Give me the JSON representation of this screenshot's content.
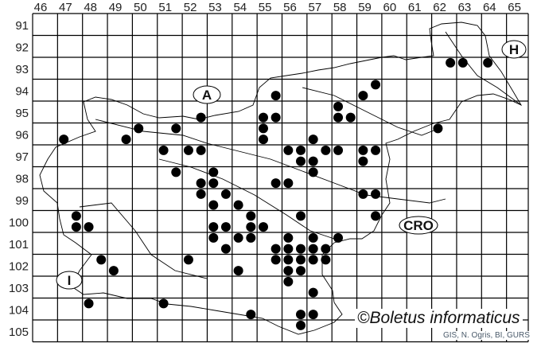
{
  "map": {
    "grid_columns": [
      "46",
      "47",
      "48",
      "49",
      "50",
      "51",
      "52",
      "53",
      "54",
      "55",
      "56",
      "57",
      "58",
      "59",
      "60",
      "61",
      "62",
      "63",
      "64",
      "65"
    ],
    "grid_rows": [
      "91",
      "92",
      "93",
      "94",
      "95",
      "96",
      "97",
      "98",
      "99",
      "100",
      "101",
      "102",
      "103",
      "104",
      "105"
    ],
    "region_labels": {
      "austria": "A",
      "hungary": "H",
      "croatia": "CRO",
      "italy": "I"
    },
    "dot_color": "#000000",
    "records": [
      [
        46.75,
        96.25
      ],
      [
        49.25,
        96.25
      ],
      [
        49.75,
        95.75
      ],
      [
        51.25,
        95.75
      ],
      [
        52.25,
        95.25
      ],
      [
        50.75,
        96.75
      ],
      [
        51.75,
        96.75
      ],
      [
        52.25,
        96.75
      ],
      [
        51.25,
        97.75
      ],
      [
        52.75,
        97.75
      ],
      [
        52.25,
        98.25
      ],
      [
        52.75,
        98.25
      ],
      [
        52.25,
        98.75
      ],
      [
        53.25,
        98.75
      ],
      [
        52.75,
        99.25
      ],
      [
        53.75,
        99.25
      ],
      [
        47.25,
        99.75
      ],
      [
        47.25,
        100.25
      ],
      [
        47.75,
        100.25
      ],
      [
        52.75,
        100.25
      ],
      [
        53.25,
        100.25
      ],
      [
        54.25,
        100.25
      ],
      [
        54.75,
        100.25
      ],
      [
        54.25,
        99.75
      ],
      [
        52.75,
        100.75
      ],
      [
        53.75,
        100.75
      ],
      [
        54.25,
        100.75
      ],
      [
        53.25,
        101.25
      ],
      [
        48.25,
        101.75
      ],
      [
        51.75,
        101.75
      ],
      [
        48.75,
        102.25
      ],
      [
        53.75,
        102.25
      ],
      [
        47.75,
        103.75
      ],
      [
        50.75,
        103.75
      ],
      [
        54.25,
        104.25
      ],
      [
        54.75,
        95.25
      ],
      [
        55.25,
        95.25
      ],
      [
        54.75,
        95.75
      ],
      [
        54.75,
        96.25
      ],
      [
        55.25,
        94.25
      ],
      [
        57.75,
        94.75
      ],
      [
        57.75,
        95.25
      ],
      [
        58.25,
        95.25
      ],
      [
        58.75,
        94.25
      ],
      [
        59.25,
        93.75
      ],
      [
        61.75,
        95.75
      ],
      [
        62.25,
        92.75
      ],
      [
        62.75,
        92.75
      ],
      [
        63.75,
        92.75
      ],
      [
        56.75,
        96.25
      ],
      [
        55.75,
        96.75
      ],
      [
        56.25,
        96.75
      ],
      [
        57.25,
        96.75
      ],
      [
        57.75,
        96.75
      ],
      [
        58.75,
        96.75
      ],
      [
        59.25,
        96.75
      ],
      [
        56.25,
        97.25
      ],
      [
        56.75,
        97.25
      ],
      [
        58.75,
        97.25
      ],
      [
        56.75,
        97.75
      ],
      [
        55.25,
        98.25
      ],
      [
        55.75,
        98.25
      ],
      [
        58.75,
        98.75
      ],
      [
        59.25,
        98.75
      ],
      [
        59.25,
        99.75
      ],
      [
        56.25,
        99.75
      ],
      [
        55.75,
        100.75
      ],
      [
        56.75,
        100.75
      ],
      [
        57.75,
        100.75
      ],
      [
        55.25,
        101.25
      ],
      [
        55.75,
        101.25
      ],
      [
        56.25,
        101.25
      ],
      [
        56.75,
        101.25
      ],
      [
        57.25,
        101.25
      ],
      [
        55.25,
        101.75
      ],
      [
        55.75,
        101.75
      ],
      [
        56.25,
        101.75
      ],
      [
        56.75,
        101.75
      ],
      [
        57.25,
        101.75
      ],
      [
        55.75,
        102.25
      ],
      [
        56.25,
        102.25
      ],
      [
        55.75,
        102.75
      ],
      [
        56.75,
        103.25
      ],
      [
        56.25,
        104.25
      ],
      [
        56.75,
        104.25
      ],
      [
        56.25,
        104.75
      ]
    ]
  },
  "footer": {
    "copyright": "©Boletus informaticus",
    "credits": "GIS, N. Ogris, BI, GURS"
  }
}
